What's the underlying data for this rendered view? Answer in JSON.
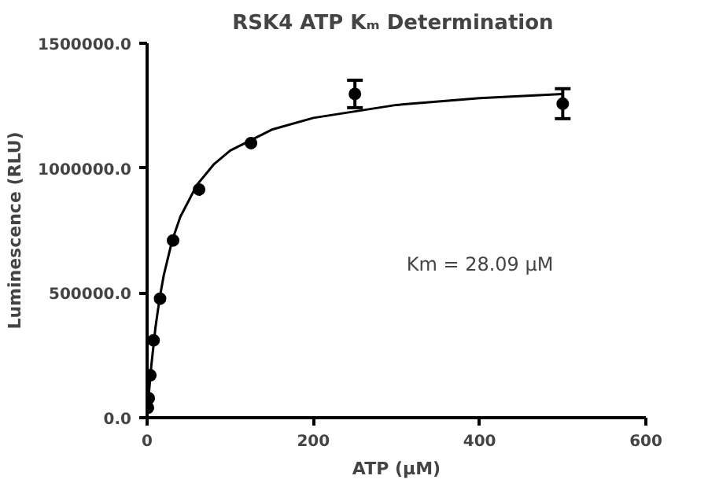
{
  "chart_data": {
    "type": "scatter",
    "title": "RSK4  ATP Kₘ Determination",
    "xlabel": "ATP (µM)",
    "ylabel": "Luminescence (RLU)",
    "xlim": [
      0,
      600
    ],
    "xticks": [
      0,
      200,
      400,
      600
    ],
    "ylim": [
      0,
      1500000
    ],
    "yticks": [
      {
        "value": 0,
        "label": "0.0"
      },
      {
        "value": 500000,
        "label": "500000.0"
      },
      {
        "value": 1000000,
        "label": "1000000.0"
      },
      {
        "value": 1500000,
        "label": "1500000.0"
      }
    ],
    "grid": false,
    "marker": "circle",
    "annotations": [
      "Km = 28.09 µM"
    ],
    "series": [
      {
        "color": "#000000",
        "x": [
          0.98,
          1.95,
          3.9,
          7.8,
          15.6,
          31.25,
          62.5,
          125,
          250,
          500
        ],
        "values": [
          40000,
          78000,
          170000,
          310000,
          477000,
          710000,
          914000,
          1100000,
          1297000,
          1258000
        ],
        "errors": [
          null,
          null,
          null,
          null,
          null,
          null,
          null,
          null,
          55000,
          60000
        ]
      },
      {
        "type": "line",
        "color": "#000000",
        "marker": "none",
        "line_style": "solid",
        "x": [
          0,
          2,
          5,
          10,
          15,
          20,
          30,
          40,
          60,
          80,
          100,
          150,
          200,
          300,
          400,
          500
        ],
        "values": [
          0,
          91000,
          207000,
          360000,
          477000,
          570000,
          708000,
          805000,
          933000,
          1014000,
          1070000,
          1154000,
          1201000,
          1253000,
          1280000,
          1297000
        ]
      }
    ]
  }
}
